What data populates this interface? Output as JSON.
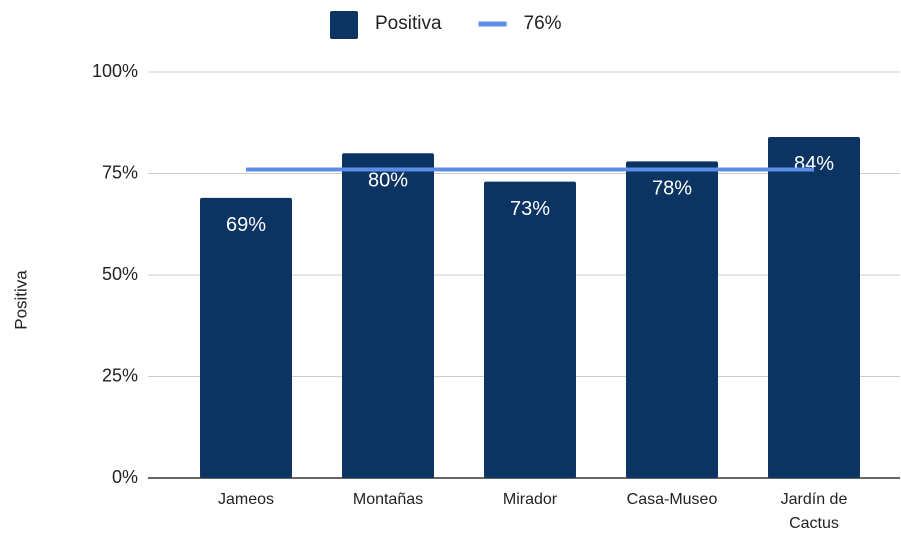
{
  "chart_data": {
    "type": "bar",
    "y_axis_label": "Positiva",
    "categories": [
      "Jameos",
      "Montañas",
      "Mirador",
      "Casa-Museo",
      "Jardín de Cactus"
    ],
    "series": [
      {
        "name": "Positiva",
        "type": "bar",
        "color": "#0c3462",
        "values": [
          69,
          80,
          73,
          78,
          84
        ],
        "value_labels": [
          "69%",
          "80%",
          "73%",
          "78%",
          "84%"
        ]
      },
      {
        "name": "76%",
        "type": "line",
        "color": "#5b8ee6",
        "values": [
          76,
          76,
          76,
          76,
          76
        ]
      }
    ],
    "ylim": [
      0,
      100
    ],
    "yticks": [
      {
        "value": 0,
        "label": "0%"
      },
      {
        "value": 25,
        "label": "25%"
      },
      {
        "value": 50,
        "label": "50%"
      },
      {
        "value": 75,
        "label": "75%"
      },
      {
        "value": 100,
        "label": "100%"
      }
    ],
    "grid": true,
    "legend": "top"
  }
}
